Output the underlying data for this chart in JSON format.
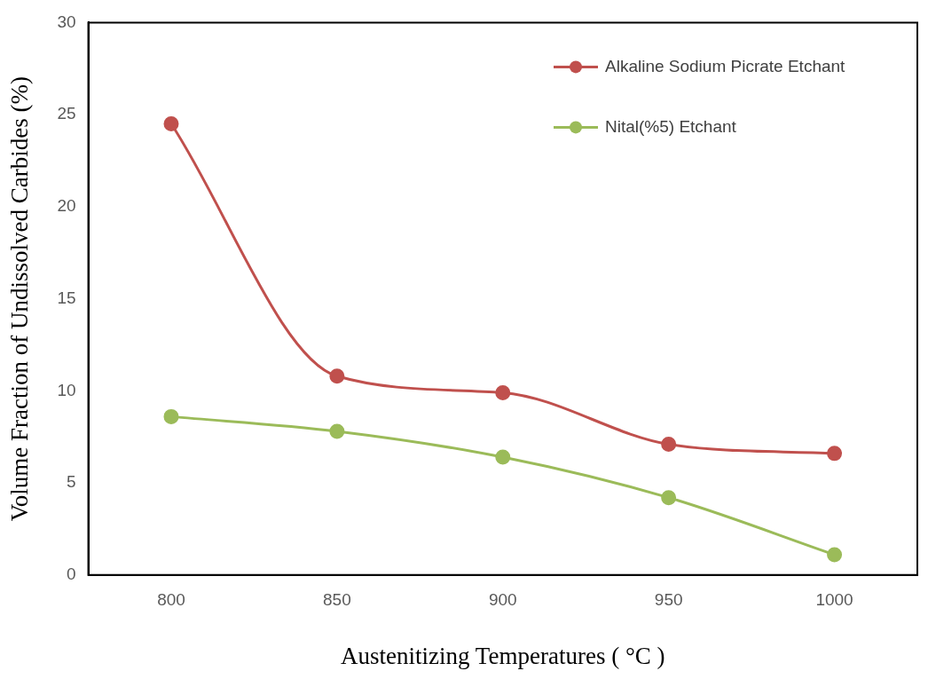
{
  "chart_data": {
    "type": "line",
    "xlabel": "Austenitizing Temperatures ( °C )",
    "ylabel": "Volume Fraction of Undissolved Carbides (%)",
    "categories": [
      "800",
      "850",
      "900",
      "950",
      "1000"
    ],
    "series": [
      {
        "name": "Alkaline Sodium Picrate Etchant",
        "color": "#c0504d",
        "values": [
          24.5,
          10.8,
          9.9,
          7.1,
          6.6
        ]
      },
      {
        "name": "Nital(%5) Etchant",
        "color": "#9bbb59",
        "values": [
          8.6,
          7.8,
          6.4,
          4.2,
          1.1
        ]
      }
    ],
    "ylim": [
      0,
      30
    ],
    "yticks": [
      0,
      5,
      10,
      15,
      20,
      25,
      30
    ],
    "grid": false,
    "legend": "top right",
    "marker": "circle",
    "line_style": "solid"
  }
}
